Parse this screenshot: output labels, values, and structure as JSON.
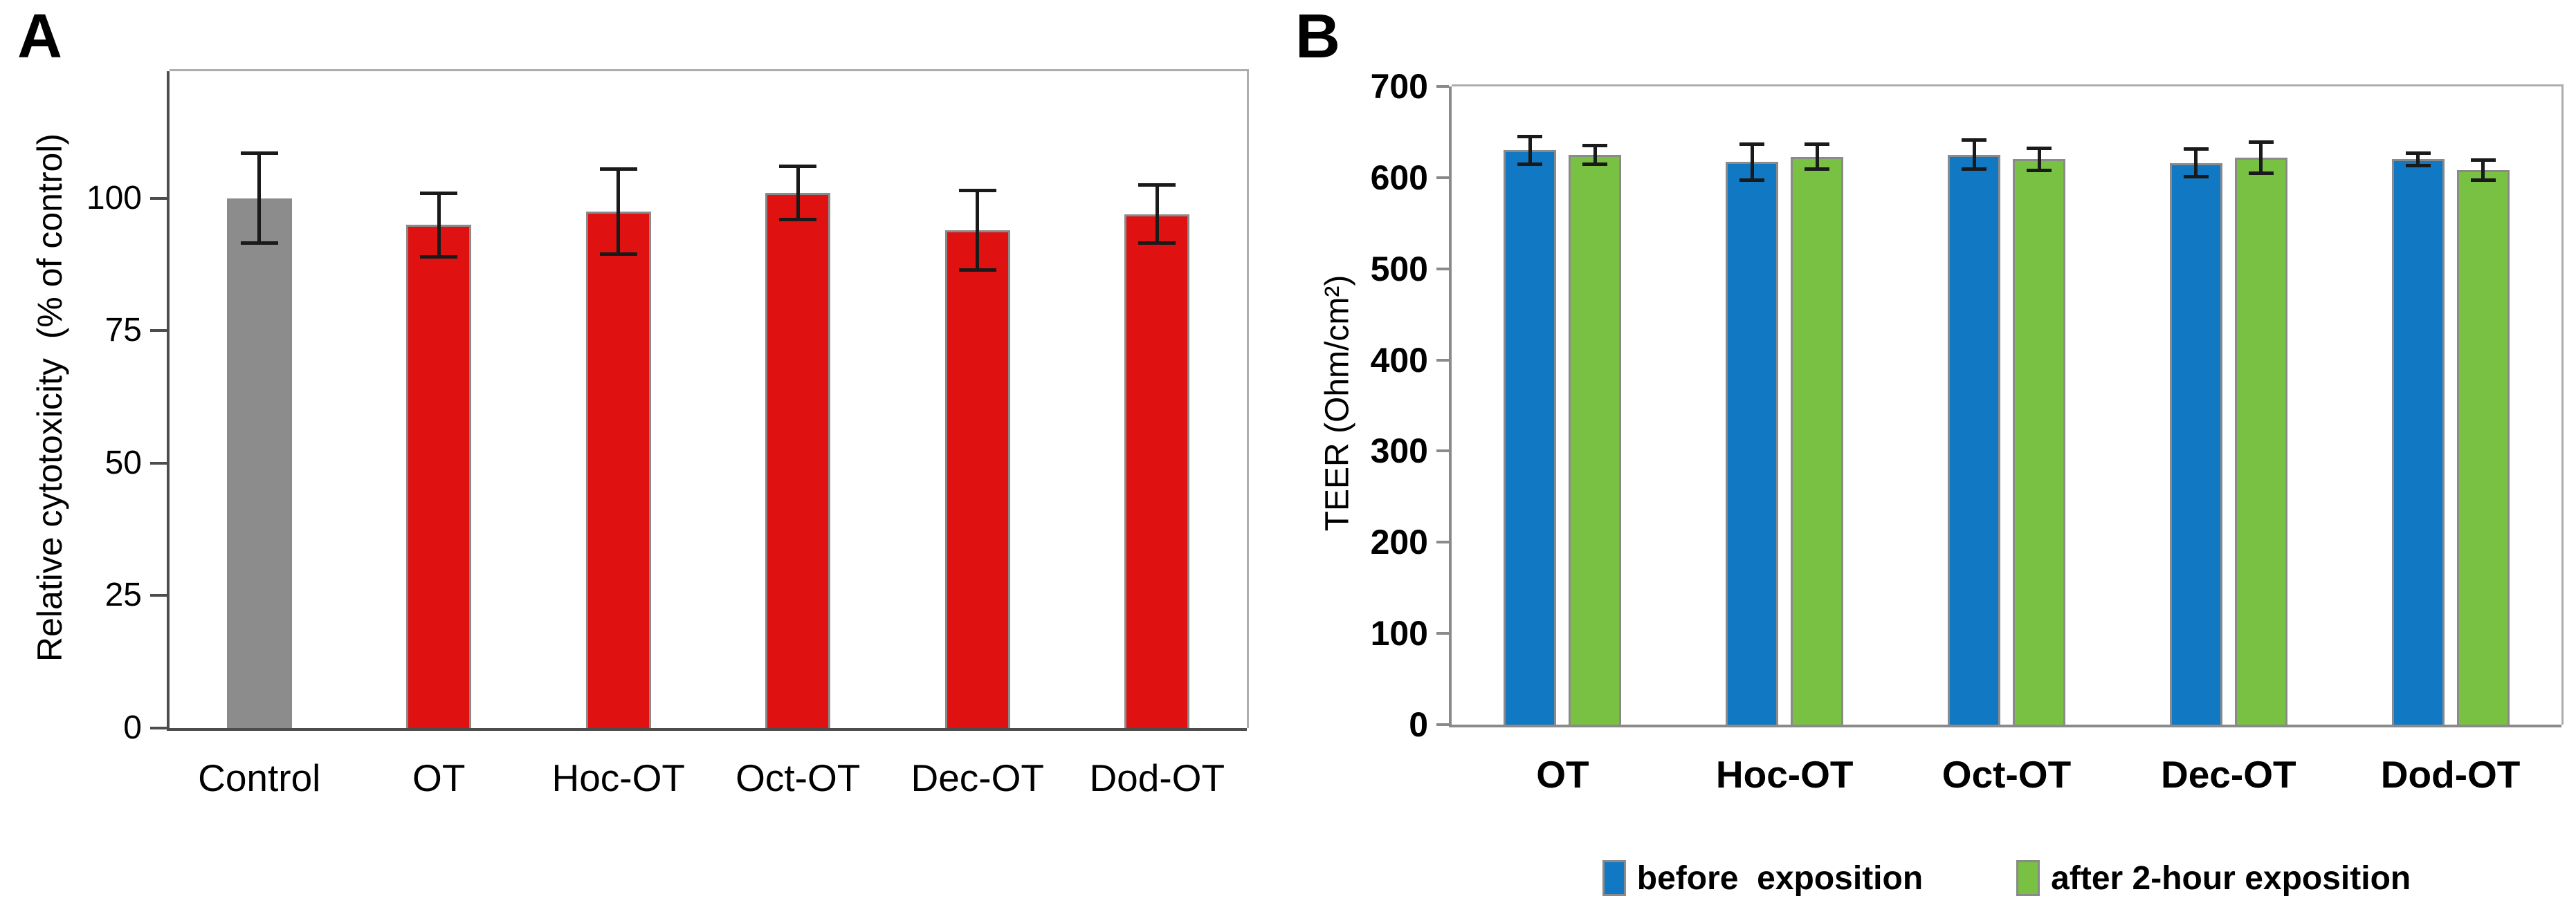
{
  "figure": {
    "background": "#ffffff",
    "description": "Two-panel bar figure: A = relative cytotoxicity, B = TEER before/after exposition"
  },
  "styles": {
    "bar_outline": "#8a8a8a",
    "error_bar_color": "#1a1a1a",
    "axis_color_a": "#4d4d4d",
    "axis_color_b": "#8a8a8a",
    "frame_color": "#adadad",
    "text_color": "#000000",
    "gray_bar": "#8c8c8c",
    "red_bar": "#e01111",
    "blue_bar": "#1178c4",
    "green_bar": "#79c142"
  },
  "chart_data": [
    {
      "id": "panel-a",
      "panel_label": "A",
      "type": "bar",
      "title": "",
      "xlabel": "",
      "ylabel": "Relative cytotoxicity  (% of control)",
      "categories": [
        "Control",
        "OT",
        "Hoc-OT",
        "Oct-OT",
        "Dec-OT",
        "Dod-OT"
      ],
      "series": [
        {
          "name": "Relative cytotoxicity (% of control)",
          "values": [
            100,
            95,
            97.5,
            101,
            94,
            97
          ],
          "errors": [
            8.5,
            6,
            8,
            5,
            7.5,
            5.5
          ],
          "bar_colors": [
            "#8c8c8c",
            "#e01111",
            "#e01111",
            "#e01111",
            "#e01111",
            "#e01111"
          ]
        }
      ],
      "ylim": [
        0,
        124
      ],
      "yticks": [
        0,
        25,
        50,
        75,
        100
      ],
      "grid": false,
      "legend_position": "none"
    },
    {
      "id": "panel-b",
      "panel_label": "B",
      "type": "bar",
      "title": "",
      "xlabel": "",
      "ylabel": "TEER (Ohm/cm²)",
      "categories": [
        "OT",
        "Hoc-OT",
        "Oct-OT",
        "Dec-OT",
        "Dod-OT"
      ],
      "series": [
        {
          "name": "before  exposition",
          "color": "#1178c4",
          "values": [
            630,
            617,
            625,
            616,
            620
          ],
          "errors": [
            15,
            20,
            16,
            15,
            7
          ]
        },
        {
          "name": "after 2-hour exposition",
          "color": "#79c142",
          "values": [
            625,
            623,
            620,
            622,
            608
          ],
          "errors": [
            10,
            14,
            12,
            17,
            11
          ]
        }
      ],
      "ylim": [
        0,
        700
      ],
      "yticks": [
        0,
        100,
        200,
        300,
        400,
        500,
        600,
        700
      ],
      "grid": false,
      "legend_position": "bottom"
    }
  ]
}
